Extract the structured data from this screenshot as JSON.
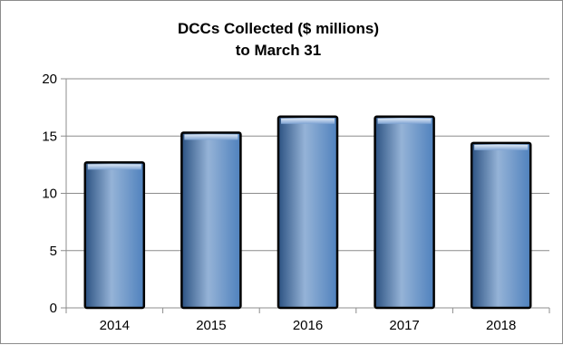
{
  "chart_data": {
    "type": "bar",
    "title_lines": [
      "DCCs Collected ($ millions)",
      "to March 31"
    ],
    "xlabel": "",
    "ylabel": "",
    "categories": [
      "2014",
      "2015",
      "2016",
      "2017",
      "2018"
    ],
    "values": [
      12.7,
      15.3,
      16.7,
      16.7,
      14.4
    ],
    "ylim": [
      0,
      20
    ],
    "yticks": [
      0,
      5,
      10,
      15,
      20
    ],
    "grid": "horizontal",
    "legend": "none",
    "bar_color": "#4f81bd",
    "bar_color_light": "#95b3d7",
    "bar_color_dark": "#2c5282",
    "bar_outline": "#000000"
  }
}
